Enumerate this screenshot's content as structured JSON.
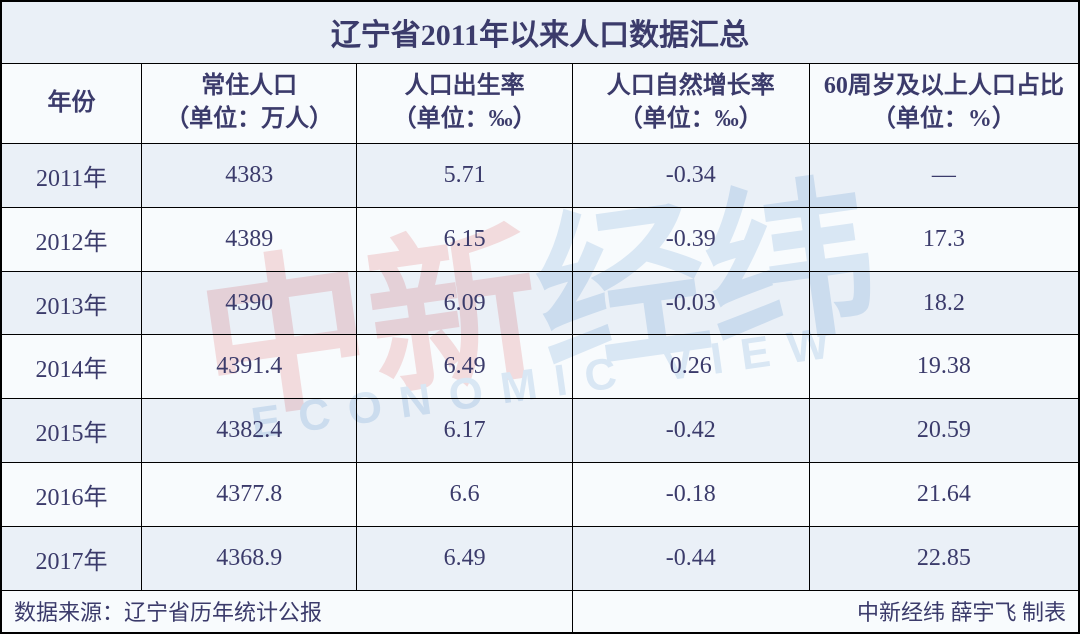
{
  "title": "辽宁省2011年以来人口数据汇总",
  "columns": [
    "年份",
    "常住人口\n（单位：万人）",
    "人口出生率\n（单位：‰）",
    "人口自然增长率\n（单位：‰）",
    "60周岁及以上人口占比\n（单位：%）"
  ],
  "rows": [
    [
      "2011年",
      "4383",
      "5.71",
      "-0.34",
      "—"
    ],
    [
      "2012年",
      "4389",
      "6.15",
      "-0.39",
      "17.3"
    ],
    [
      "2013年",
      "4390",
      "6.09",
      "-0.03",
      "18.2"
    ],
    [
      "2014年",
      "4391.4",
      "6.49",
      "0.26",
      "19.38"
    ],
    [
      "2015年",
      "4382.4",
      "6.17",
      "-0.42",
      "20.59"
    ],
    [
      "2016年",
      "4377.8",
      "6.6",
      "-0.18",
      "21.64"
    ],
    [
      "2017年",
      "4368.9",
      "6.49",
      "-0.44",
      "22.85"
    ]
  ],
  "footer": {
    "source_label": "数据来源：辽宁省历年统计公报",
    "credit": "中新经纬 薛宇飞 制表"
  },
  "watermark": {
    "main_part1": "中新",
    "main_part2": "经纬",
    "sub": "ECONOMIC VIEW",
    "color_red": "#d93636",
    "color_blue": "#3b7fc4"
  },
  "styling": {
    "row_bg_odd": "#d9e4f0",
    "row_bg_even": "#f3f7fb",
    "text_color": "#3b3b6b",
    "border_color": "#000000",
    "title_fontsize": 30,
    "header_fontsize": 24,
    "cell_fontsize": 24,
    "footer_fontsize": 22,
    "font_family": "SimSun"
  }
}
